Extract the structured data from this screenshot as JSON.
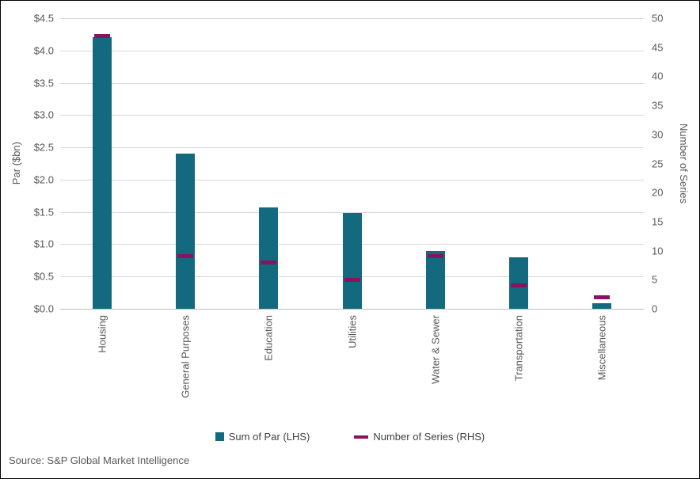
{
  "chart_data": {
    "type": "bar",
    "title": "",
    "categories": [
      "Housing",
      "General Purposes",
      "Education",
      "Utilities",
      "Water & Sewer",
      "Transportation",
      "Miscellaneous"
    ],
    "series": [
      {
        "name": "Sum of Par (LHS)",
        "type": "bar",
        "axis": "left",
        "color": "#136a7e",
        "values": [
          4.2,
          2.4,
          1.57,
          1.48,
          0.9,
          0.8,
          0.08
        ]
      },
      {
        "name": "Number of Series (RHS)",
        "type": "tick",
        "axis": "right",
        "color": "#8a125e",
        "values": [
          47,
          9,
          8,
          5,
          9,
          4,
          2
        ]
      }
    ],
    "left_axis": {
      "label": "Par ($bn)",
      "min": 0,
      "max": 4.5,
      "step": 0.5,
      "tick_prefix": "$",
      "tick_decimals": 1
    },
    "right_axis": {
      "label": "Number of Series",
      "min": 0,
      "max": 50,
      "step": 5
    },
    "grid": true,
    "legend_position": "bottom"
  },
  "legend": {
    "items": [
      {
        "label": "Sum of Par (LHS)",
        "marker": "square",
        "color": "#136a7e"
      },
      {
        "label": "Number of Series (RHS)",
        "marker": "dash",
        "color": "#8a125e"
      }
    ]
  },
  "source": "Source: S&P Global Market Intelligence",
  "colors": {
    "grid": "#d9d9d9",
    "axis_line": "#bfbfbf",
    "text": "#595959"
  }
}
